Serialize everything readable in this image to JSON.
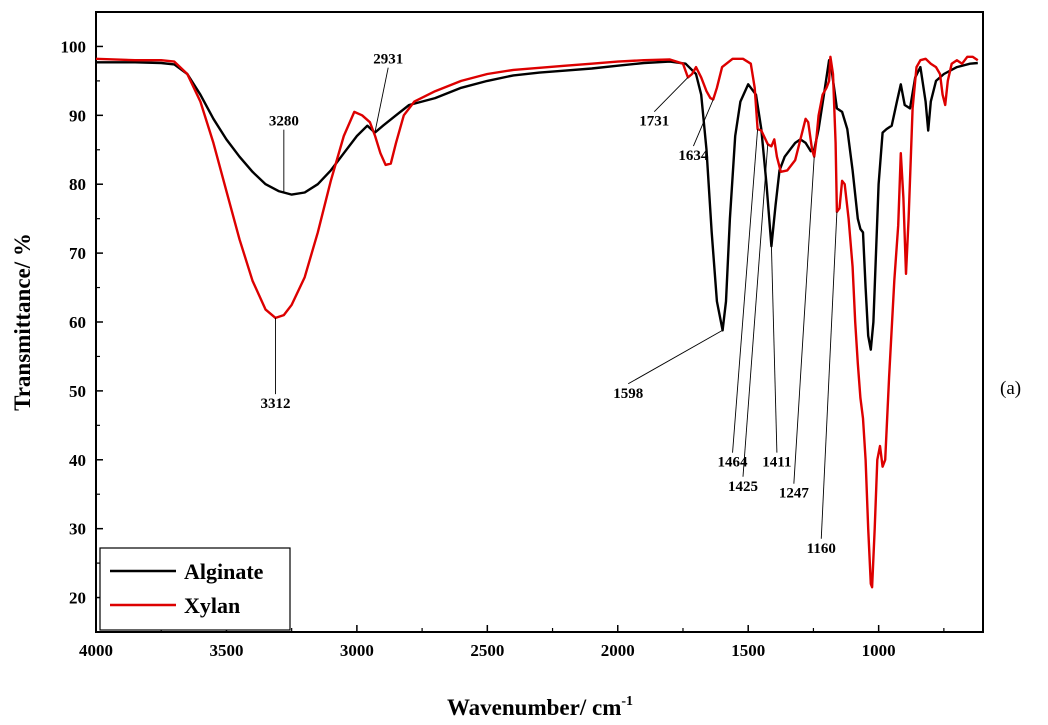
{
  "chart_data": {
    "type": "line",
    "xlabel": "Wavenumber/ cm",
    "xlabel_superscript": "-1",
    "ylabel": "Transmittance/ %",
    "xlim": [
      4000,
      600
    ],
    "ylim": [
      15,
      105
    ],
    "x_reversed": true,
    "x_ticks": [
      4000,
      3500,
      3000,
      2500,
      2000,
      1500,
      1000
    ],
    "y_ticks": [
      20,
      30,
      40,
      50,
      60,
      70,
      80,
      90,
      100
    ],
    "grid": false,
    "legend_position": "bottom-left",
    "panel_label": "(a)",
    "series": [
      {
        "name": "Alginate",
        "color": "#000000",
        "points": [
          [
            4000,
            97.7
          ],
          [
            3850,
            97.7
          ],
          [
            3750,
            97.6
          ],
          [
            3700,
            97.4
          ],
          [
            3650,
            96.0
          ],
          [
            3600,
            93.0
          ],
          [
            3550,
            89.5
          ],
          [
            3500,
            86.5
          ],
          [
            3450,
            84.0
          ],
          [
            3400,
            81.8
          ],
          [
            3350,
            80.0
          ],
          [
            3300,
            79.0
          ],
          [
            3280,
            78.8
          ],
          [
            3250,
            78.5
          ],
          [
            3200,
            78.8
          ],
          [
            3150,
            80.0
          ],
          [
            3100,
            82.0
          ],
          [
            3050,
            84.5
          ],
          [
            3000,
            87.0
          ],
          [
            2960,
            88.5
          ],
          [
            2931,
            87.5
          ],
          [
            2900,
            88.5
          ],
          [
            2850,
            90.0
          ],
          [
            2800,
            91.5
          ],
          [
            2700,
            92.5
          ],
          [
            2600,
            94.0
          ],
          [
            2500,
            95.0
          ],
          [
            2400,
            95.8
          ],
          [
            2300,
            96.2
          ],
          [
            2200,
            96.5
          ],
          [
            2100,
            96.8
          ],
          [
            2000,
            97.2
          ],
          [
            1900,
            97.6
          ],
          [
            1800,
            97.8
          ],
          [
            1740,
            97.5
          ],
          [
            1700,
            96.0
          ],
          [
            1680,
            93.0
          ],
          [
            1660,
            85.0
          ],
          [
            1640,
            73.0
          ],
          [
            1620,
            63.0
          ],
          [
            1598,
            58.8
          ],
          [
            1585,
            63.0
          ],
          [
            1570,
            75.0
          ],
          [
            1550,
            87.0
          ],
          [
            1530,
            92.0
          ],
          [
            1500,
            94.5
          ],
          [
            1470,
            93.0
          ],
          [
            1450,
            88.0
          ],
          [
            1430,
            80.0
          ],
          [
            1411,
            71.0
          ],
          [
            1395,
            77.0
          ],
          [
            1380,
            82.0
          ],
          [
            1360,
            84.0
          ],
          [
            1340,
            85.0
          ],
          [
            1320,
            86.0
          ],
          [
            1300,
            86.5
          ],
          [
            1280,
            86.0
          ],
          [
            1260,
            84.8
          ],
          [
            1247,
            85.0
          ],
          [
            1230,
            88.0
          ],
          [
            1210,
            93.0
          ],
          [
            1190,
            98.0
          ],
          [
            1180,
            96.5
          ],
          [
            1160,
            91.0
          ],
          [
            1140,
            90.5
          ],
          [
            1120,
            88.0
          ],
          [
            1100,
            82.0
          ],
          [
            1080,
            75.0
          ],
          [
            1070,
            73.5
          ],
          [
            1060,
            73.0
          ],
          [
            1050,
            65.0
          ],
          [
            1040,
            58.0
          ],
          [
            1030,
            56.0
          ],
          [
            1020,
            60.0
          ],
          [
            1010,
            70.0
          ],
          [
            1000,
            80.0
          ],
          [
            985,
            87.5
          ],
          [
            970,
            88.0
          ],
          [
            950,
            88.5
          ],
          [
            930,
            92.0
          ],
          [
            915,
            94.5
          ],
          [
            900,
            91.5
          ],
          [
            880,
            91.0
          ],
          [
            860,
            95.5
          ],
          [
            840,
            97.0
          ],
          [
            820,
            92.0
          ],
          [
            810,
            87.8
          ],
          [
            800,
            92.0
          ],
          [
            780,
            95.0
          ],
          [
            750,
            96.0
          ],
          [
            700,
            97.0
          ],
          [
            650,
            97.5
          ],
          [
            620,
            97.6
          ]
        ]
      },
      {
        "name": "Xylan",
        "color": "#dd0000",
        "points": [
          [
            4000,
            98.2
          ],
          [
            3850,
            98.0
          ],
          [
            3750,
            98.0
          ],
          [
            3700,
            97.8
          ],
          [
            3650,
            96.0
          ],
          [
            3600,
            92.0
          ],
          [
            3550,
            86.0
          ],
          [
            3500,
            79.0
          ],
          [
            3450,
            72.0
          ],
          [
            3400,
            66.0
          ],
          [
            3350,
            61.8
          ],
          [
            3312,
            60.6
          ],
          [
            3280,
            61.0
          ],
          [
            3250,
            62.5
          ],
          [
            3200,
            66.5
          ],
          [
            3150,
            73.0
          ],
          [
            3100,
            80.5
          ],
          [
            3050,
            87.0
          ],
          [
            3010,
            90.5
          ],
          [
            2980,
            90.0
          ],
          [
            2950,
            89.0
          ],
          [
            2930,
            87.0
          ],
          [
            2910,
            84.5
          ],
          [
            2890,
            82.8
          ],
          [
            2870,
            83.0
          ],
          [
            2850,
            86.0
          ],
          [
            2820,
            90.0
          ],
          [
            2780,
            92.0
          ],
          [
            2700,
            93.5
          ],
          [
            2600,
            95.0
          ],
          [
            2500,
            96.0
          ],
          [
            2400,
            96.6
          ],
          [
            2300,
            96.9
          ],
          [
            2200,
            97.2
          ],
          [
            2100,
            97.5
          ],
          [
            2000,
            97.8
          ],
          [
            1900,
            98.0
          ],
          [
            1800,
            98.1
          ],
          [
            1750,
            97.5
          ],
          [
            1731,
            95.5
          ],
          [
            1715,
            96.0
          ],
          [
            1700,
            97.0
          ],
          [
            1680,
            95.5
          ],
          [
            1660,
            93.5
          ],
          [
            1645,
            92.5
          ],
          [
            1634,
            92.3
          ],
          [
            1620,
            94.0
          ],
          [
            1600,
            97.0
          ],
          [
            1560,
            98.2
          ],
          [
            1520,
            98.2
          ],
          [
            1490,
            97.5
          ],
          [
            1475,
            94.0
          ],
          [
            1464,
            88.0
          ],
          [
            1450,
            87.8
          ],
          [
            1440,
            87.0
          ],
          [
            1425,
            85.8
          ],
          [
            1411,
            85.5
          ],
          [
            1400,
            86.5
          ],
          [
            1390,
            84.0
          ],
          [
            1375,
            81.8
          ],
          [
            1350,
            82.0
          ],
          [
            1320,
            83.5
          ],
          [
            1300,
            86.5
          ],
          [
            1280,
            89.5
          ],
          [
            1270,
            89.0
          ],
          [
            1255,
            85.0
          ],
          [
            1247,
            84.0
          ],
          [
            1240,
            86.0
          ],
          [
            1230,
            90.0
          ],
          [
            1215,
            93.0
          ],
          [
            1200,
            94.0
          ],
          [
            1190,
            95.0
          ],
          [
            1185,
            98.5
          ],
          [
            1175,
            96.0
          ],
          [
            1165,
            86.0
          ],
          [
            1160,
            76.0
          ],
          [
            1150,
            76.5
          ],
          [
            1140,
            80.5
          ],
          [
            1130,
            80.0
          ],
          [
            1115,
            75.0
          ],
          [
            1100,
            68.0
          ],
          [
            1090,
            60.0
          ],
          [
            1080,
            54.0
          ],
          [
            1070,
            49.0
          ],
          [
            1060,
            46.0
          ],
          [
            1050,
            40.0
          ],
          [
            1040,
            30.0
          ],
          [
            1030,
            22.0
          ],
          [
            1025,
            21.5
          ],
          [
            1015,
            30.0
          ],
          [
            1005,
            40.0
          ],
          [
            995,
            42.0
          ],
          [
            985,
            39.0
          ],
          [
            975,
            40.0
          ],
          [
            960,
            52.0
          ],
          [
            940,
            66.0
          ],
          [
            925,
            74.0
          ],
          [
            915,
            84.5
          ],
          [
            905,
            78.0
          ],
          [
            895,
            67.0
          ],
          [
            885,
            75.0
          ],
          [
            870,
            91.0
          ],
          [
            855,
            97.0
          ],
          [
            840,
            98.0
          ],
          [
            820,
            98.2
          ],
          [
            800,
            97.5
          ],
          [
            780,
            97.0
          ],
          [
            765,
            96.0
          ],
          [
            755,
            93.0
          ],
          [
            745,
            91.5
          ],
          [
            735,
            95.0
          ],
          [
            720,
            97.5
          ],
          [
            700,
            98.0
          ],
          [
            680,
            97.5
          ],
          [
            660,
            98.5
          ],
          [
            640,
            98.5
          ],
          [
            620,
            98.0
          ]
        ]
      }
    ],
    "annotations": [
      {
        "text": "3280",
        "series": "Alginate",
        "x": 3280,
        "y": 78.8,
        "label_x": 3280,
        "label_y": 88.5
      },
      {
        "text": "2931",
        "series": "Alginate",
        "x": 2931,
        "y": 87.5,
        "label_x": 2880,
        "label_y": 97.5
      },
      {
        "text": "3312",
        "series": "Xylan",
        "x": 3312,
        "y": 60.6,
        "label_x": 3312,
        "label_y": 47.5
      },
      {
        "text": "1731",
        "series": "Xylan",
        "x": 1731,
        "y": 95.5,
        "label_x": 1860,
        "label_y": 88.5
      },
      {
        "text": "1634",
        "series": "Xylan",
        "x": 1634,
        "y": 92.3,
        "label_x": 1710,
        "label_y": 83.5
      },
      {
        "text": "1598",
        "series": "Alginate",
        "x": 1598,
        "y": 58.8,
        "label_x": 1960,
        "label_y": 49.0
      },
      {
        "text": "1464",
        "series": "Xylan",
        "x": 1464,
        "y": 88.0,
        "label_x": 1560,
        "label_y": 39.0
      },
      {
        "text": "1425",
        "series": "Xylan",
        "x": 1425,
        "y": 85.8,
        "label_x": 1520,
        "label_y": 35.5
      },
      {
        "text": "1411",
        "series": "Alginate",
        "x": 1411,
        "y": 71.0,
        "label_x": 1390,
        "label_y": 39.0
      },
      {
        "text": "1247",
        "series": "Xylan",
        "x": 1247,
        "y": 84.0,
        "label_x": 1325,
        "label_y": 34.5
      },
      {
        "text": "1160",
        "series": "Xylan",
        "x": 1160,
        "y": 76.0,
        "label_x": 1220,
        "label_y": 26.5
      }
    ]
  }
}
